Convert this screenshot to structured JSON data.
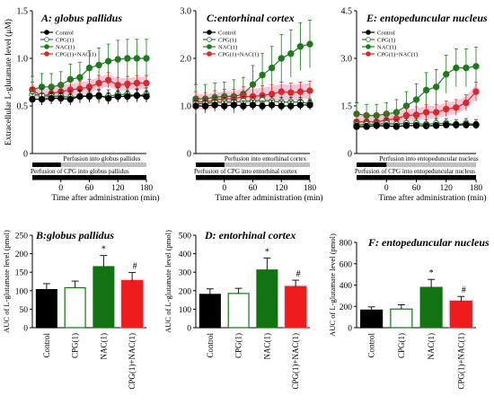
{
  "chart_data": [
    {
      "type": "line",
      "title": "A: globus pallidus",
      "ylabel": "Extracellular L-glutamate level (μM)",
      "xlabel": "Time after administration (min)",
      "xlim": [
        -60,
        180
      ],
      "ylim": [
        0,
        1.5
      ],
      "yticks": [
        "0",
        "0.5",
        "1.0",
        "1.5"
      ],
      "xticks": [
        "0",
        "60",
        "120",
        "180"
      ],
      "x": [
        -60,
        -40,
        -20,
        0,
        20,
        40,
        60,
        80,
        100,
        120,
        140,
        160,
        180
      ],
      "series": [
        {
          "name": "Control",
          "values": [
            0.57,
            0.57,
            0.58,
            0.58,
            0.57,
            0.6,
            0.6,
            0.61,
            0.58,
            0.6,
            0.6,
            0.61,
            0.6
          ],
          "error": [
            0.06,
            0.06,
            0.06,
            0.06,
            0.06,
            0.06,
            0.06,
            0.06,
            0.06,
            0.06,
            0.06,
            0.06,
            0.06
          ]
        },
        {
          "name": "CPG(1)",
          "values": [
            0.62,
            0.61,
            0.6,
            0.6,
            0.59,
            0.6,
            0.61,
            0.6,
            0.6,
            0.62,
            0.62,
            0.61,
            0.62
          ],
          "error": [
            0.07,
            0.07,
            0.07,
            0.07,
            0.07,
            0.07,
            0.07,
            0.07,
            0.07,
            0.07,
            0.07,
            0.07,
            0.07
          ]
        },
        {
          "name": "NAC(1)",
          "values": [
            0.67,
            0.7,
            0.7,
            0.72,
            0.78,
            0.8,
            0.9,
            0.93,
            0.97,
            0.99,
            1.0,
            1.0,
            1.0
          ],
          "error": [
            0.14,
            0.14,
            0.14,
            0.14,
            0.16,
            0.16,
            0.18,
            0.18,
            0.18,
            0.2,
            0.2,
            0.2,
            0.2
          ]
        },
        {
          "name": "CPG(1)+NAC(1)",
          "values": [
            0.67,
            0.6,
            0.63,
            0.65,
            0.67,
            0.68,
            0.7,
            0.74,
            0.77,
            0.72,
            0.73,
            0.74,
            0.74
          ],
          "error": [
            0.08,
            0.08,
            0.08,
            0.08,
            0.08,
            0.08,
            0.08,
            0.08,
            0.08,
            0.08,
            0.08,
            0.08,
            0.08
          ]
        }
      ],
      "perfusion_label": "Perfusion into globus pallidus",
      "cpg_label": "Perfusion of CPG into globus pallidus"
    },
    {
      "type": "line",
      "title": "C:entorhinal cortex",
      "xlabel": "Time after administration (min)",
      "xlim": [
        -60,
        180
      ],
      "ylim": [
        0,
        3.0
      ],
      "yticks": [
        "0",
        "1.0",
        "2.0",
        "3.0"
      ],
      "xticks": [
        "0",
        "60",
        "120",
        "180"
      ],
      "x": [
        -60,
        -40,
        -20,
        0,
        20,
        40,
        60,
        80,
        100,
        120,
        140,
        160,
        180
      ],
      "series": [
        {
          "name": "Control",
          "values": [
            1.0,
            1.0,
            1.02,
            1.0,
            1.02,
            1.0,
            1.02,
            1.0,
            1.02,
            1.0,
            1.0,
            1.02,
            1.02
          ],
          "error": [
            0.1,
            0.1,
            0.1,
            0.1,
            0.1,
            0.1,
            0.1,
            0.1,
            0.1,
            0.1,
            0.1,
            0.1,
            0.1
          ]
        },
        {
          "name": "CPG(1)",
          "values": [
            1.05,
            1.05,
            1.08,
            1.08,
            1.08,
            1.1,
            1.1,
            1.12,
            1.1,
            1.08,
            1.08,
            1.08,
            1.05
          ],
          "error": [
            0.1,
            0.1,
            0.1,
            0.1,
            0.1,
            0.1,
            0.1,
            0.1,
            0.1,
            0.1,
            0.1,
            0.1,
            0.1
          ]
        },
        {
          "name": "NAC(1)",
          "values": [
            1.15,
            1.15,
            1.18,
            1.2,
            1.2,
            1.25,
            1.45,
            1.65,
            1.8,
            2.0,
            2.1,
            2.25,
            2.3
          ],
          "error": [
            0.3,
            0.3,
            0.3,
            0.3,
            0.35,
            0.35,
            0.4,
            0.45,
            0.45,
            0.5,
            0.5,
            0.5,
            0.5
          ]
        },
        {
          "name": "CPG(1)+NAC(1)",
          "values": [
            1.1,
            1.08,
            1.12,
            1.15,
            1.15,
            1.2,
            1.2,
            1.22,
            1.25,
            1.3,
            1.28,
            1.3,
            1.32
          ],
          "error": [
            0.2,
            0.2,
            0.2,
            0.2,
            0.2,
            0.2,
            0.2,
            0.2,
            0.2,
            0.2,
            0.2,
            0.2,
            0.2
          ]
        }
      ],
      "perfusion_label": "Perfusion into entorhinal cortex",
      "cpg_label": "Perfusion of CPG into entorhinal cortex"
    },
    {
      "type": "line",
      "title": "E: entopeduncular nucleus",
      "xlabel": "Time after administration (min)",
      "xlim": [
        -60,
        180
      ],
      "ylim": [
        0,
        4.5
      ],
      "yticks": [
        "0",
        "1.5",
        "3.0",
        "4.5"
      ],
      "xticks": [
        "0",
        "60",
        "120",
        "180"
      ],
      "x": [
        -60,
        -40,
        -20,
        0,
        20,
        40,
        60,
        80,
        100,
        120,
        140,
        160,
        180
      ],
      "series": [
        {
          "name": "Control",
          "values": [
            0.85,
            0.85,
            0.88,
            0.87,
            0.85,
            0.88,
            0.88,
            0.87,
            0.88,
            0.9,
            0.9,
            0.9,
            0.9
          ],
          "error": [
            0.1,
            0.1,
            0.1,
            0.1,
            0.1,
            0.1,
            0.1,
            0.1,
            0.1,
            0.1,
            0.1,
            0.1,
            0.1
          ]
        },
        {
          "name": "CPG(1)",
          "values": [
            0.9,
            0.92,
            0.92,
            0.95,
            0.92,
            0.95,
            0.95,
            0.92,
            0.95,
            0.95,
            0.92,
            0.95,
            0.92
          ],
          "error": [
            0.15,
            0.15,
            0.15,
            0.15,
            0.15,
            0.15,
            0.15,
            0.15,
            0.15,
            0.15,
            0.15,
            0.15,
            0.15
          ]
        },
        {
          "name": "NAC(1)",
          "values": [
            1.25,
            1.2,
            1.2,
            1.25,
            1.3,
            1.5,
            1.7,
            2.0,
            2.1,
            2.5,
            2.7,
            2.7,
            2.75
          ],
          "error": [
            0.35,
            0.35,
            0.35,
            0.35,
            0.4,
            0.45,
            0.5,
            0.55,
            0.55,
            0.6,
            0.6,
            0.6,
            0.6
          ]
        },
        {
          "name": "CPG(1)+NAC(1)",
          "values": [
            1.0,
            1.0,
            1.0,
            1.05,
            1.1,
            1.2,
            1.22,
            1.3,
            1.3,
            1.4,
            1.45,
            1.6,
            1.95
          ],
          "error": [
            0.25,
            0.25,
            0.25,
            0.25,
            0.25,
            0.25,
            0.25,
            0.25,
            0.25,
            0.25,
            0.25,
            0.25,
            0.3
          ]
        }
      ],
      "perfusion_label": "Perfusion into entopeduncular nucleus",
      "cpg_label": "Perfusion of CPG into entopeduncular nucleus"
    },
    {
      "type": "bar",
      "title": "B:globus pallidus",
      "ylabel": "AUC of L-glutamate level (pmol)",
      "ylim": [
        0,
        250
      ],
      "yticks": [
        "0",
        "50",
        "100",
        "150",
        "200",
        "250"
      ],
      "categories": [
        "Control",
        "CPG(1)",
        "NAC(1)",
        "CPG(1)+NAC(1)"
      ],
      "values": [
        103,
        108,
        165,
        127
      ],
      "error": [
        16,
        18,
        30,
        22
      ],
      "annotations": [
        "",
        "",
        "*",
        "#"
      ]
    },
    {
      "type": "bar",
      "title": "D: entorhinal cortex",
      "ylabel": "AUC of L-glutamate level (pmol)",
      "ylim": [
        0,
        500
      ],
      "yticks": [
        "0",
        "100",
        "200",
        "300",
        "400",
        "500"
      ],
      "categories": [
        "Control",
        "CPG(1)",
        "NAC(1)",
        "CPG(1)+NAC(1)"
      ],
      "values": [
        180,
        185,
        312,
        222
      ],
      "error": [
        30,
        28,
        65,
        35
      ],
      "annotations": [
        "",
        "",
        "*",
        "#"
      ]
    },
    {
      "type": "bar",
      "title": "F: entopeduncular nucleus",
      "ylabel": "AUC of L-glutamate level (pmol)",
      "ylim": [
        0,
        800
      ],
      "yticks": [
        "0",
        "200",
        "400",
        "600",
        "800"
      ],
      "categories": [
        "Control",
        "CPG(1)",
        "NAC(1)",
        "CPG(1)+NAC(1)"
      ],
      "values": [
        165,
        175,
        378,
        248
      ],
      "error": [
        30,
        40,
        75,
        45
      ],
      "annotations": [
        "",
        "",
        "*",
        "#"
      ]
    }
  ],
  "colors": {
    "control": "#000000",
    "cpg": "#ffffff",
    "nac": "#1e7a1e",
    "cpg_nac": "#d42a2a",
    "cpg_nac_band": "#f2bcd2",
    "bar_red": "#ee1c1c",
    "bar_green": "#137313",
    "perfusion_bar": "#c0c0c0"
  }
}
